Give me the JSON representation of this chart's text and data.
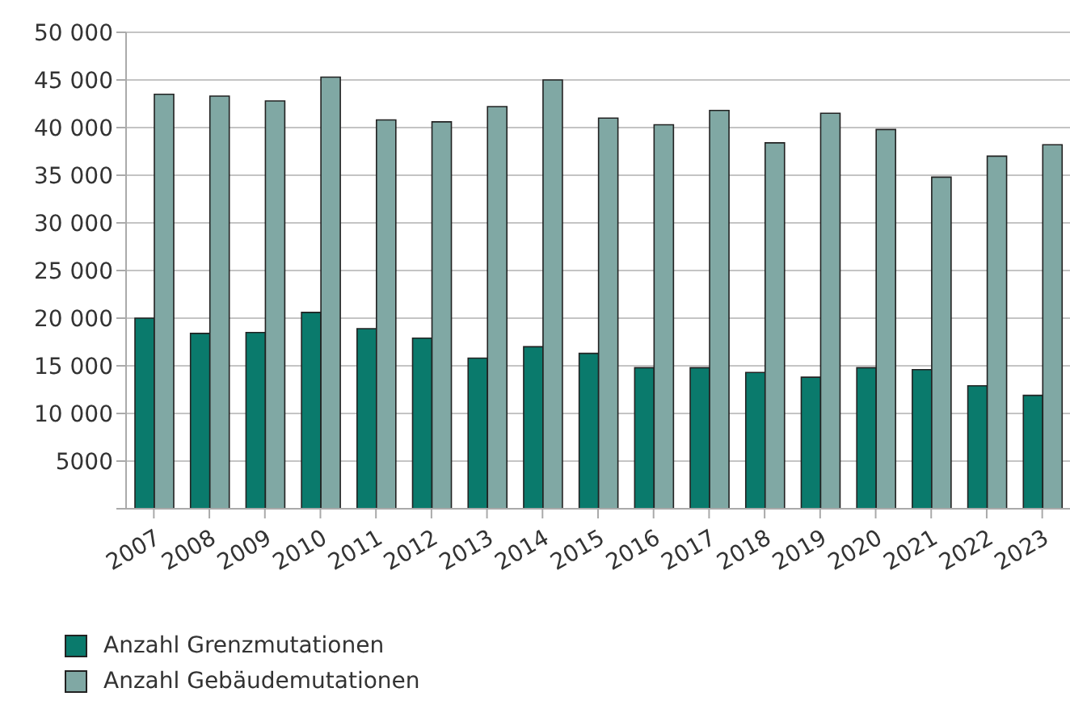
{
  "chart_data": {
    "type": "bar",
    "categories": [
      "2007",
      "2008",
      "2009",
      "2010",
      "2011",
      "2012",
      "2013",
      "2014",
      "2015",
      "2016",
      "2017",
      "2018",
      "2019",
      "2020",
      "2021",
      "2022",
      "2023"
    ],
    "series": [
      {
        "name": "Anzahl Grenzmutationen",
        "color": "#0a7a6c",
        "values": [
          20000,
          18400,
          18500,
          20600,
          18900,
          17900,
          15800,
          17000,
          16300,
          14800,
          14800,
          14300,
          13800,
          14800,
          14600,
          12900,
          11900
        ]
      },
      {
        "name": "Anzahl Gebäudemutationen",
        "color": "#80a8a4",
        "values": [
          43500,
          43300,
          42800,
          45300,
          40800,
          40600,
          42200,
          45000,
          41000,
          40300,
          41800,
          38400,
          41500,
          39800,
          34800,
          37000,
          38200
        ]
      }
    ],
    "ylim": [
      0,
      50000
    ],
    "yticks": [
      {
        "value": 0,
        "label": null
      },
      {
        "value": 5000,
        "label": "5000"
      },
      {
        "value": 10000,
        "label": "10 000"
      },
      {
        "value": 15000,
        "label": "15 000"
      },
      {
        "value": 20000,
        "label": "20 000"
      },
      {
        "value": 25000,
        "label": "25 000"
      },
      {
        "value": 30000,
        "label": "30 000"
      },
      {
        "value": 35000,
        "label": "35 000"
      },
      {
        "value": 40000,
        "label": "40 000"
      },
      {
        "value": 45000,
        "label": "45 000"
      },
      {
        "value": 50000,
        "label": "50 000"
      }
    ],
    "grid": "y",
    "legend": "bottom left"
  }
}
